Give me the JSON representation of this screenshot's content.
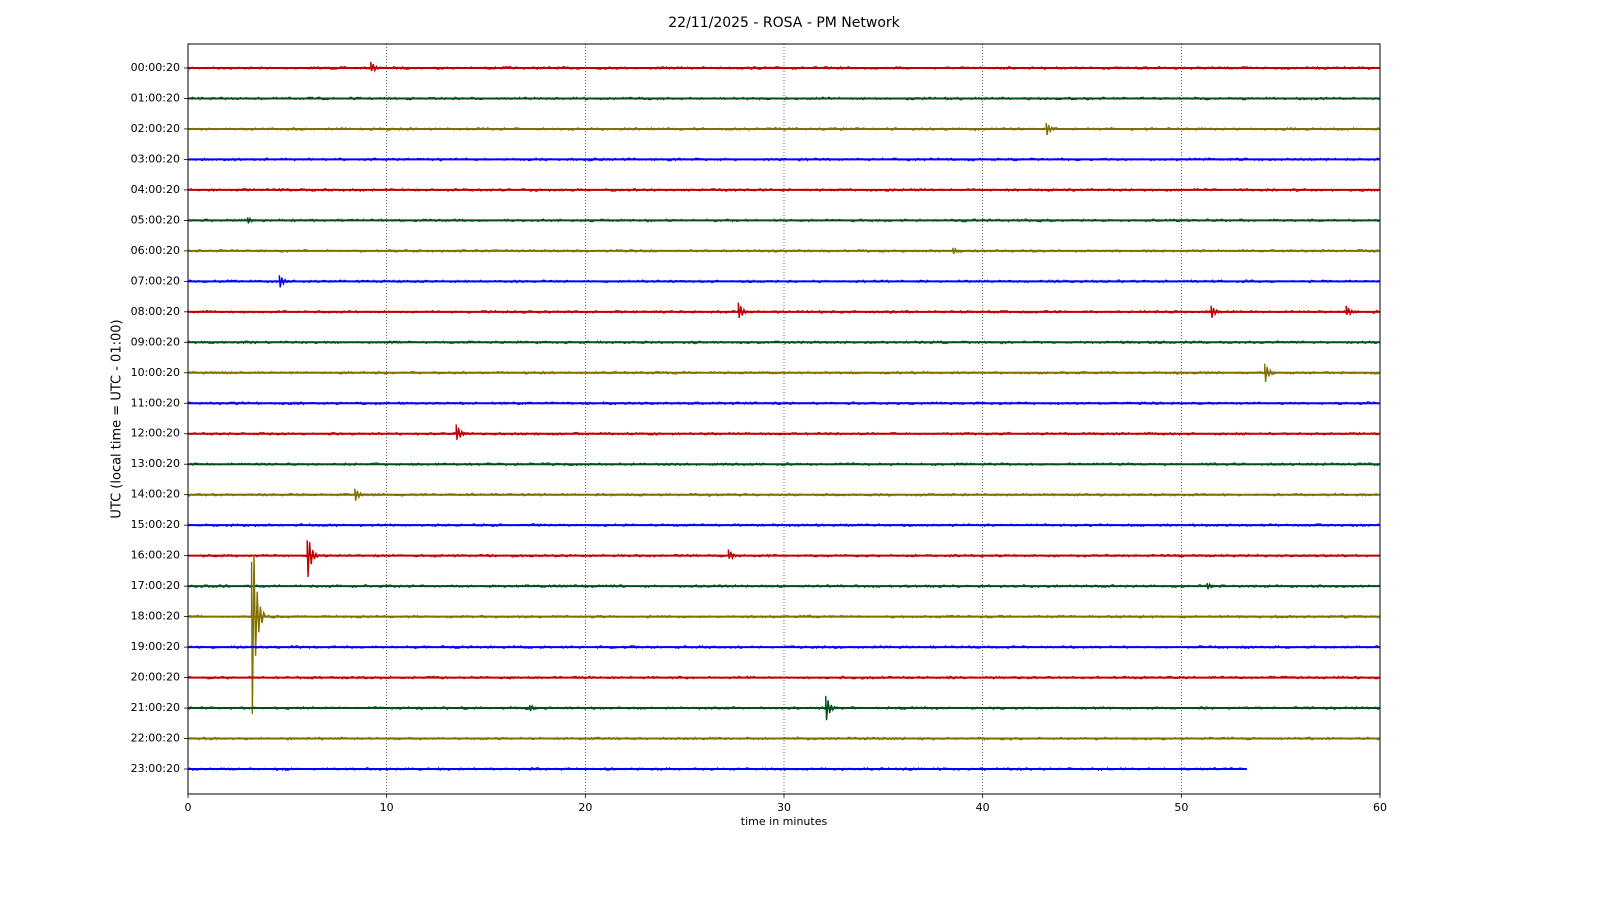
{
  "chart_data": {
    "type": "helicorder",
    "title": "22/11/2025 - ROSA - PM Network",
    "x_label": "time in minutes",
    "y_label": "UTC (local time = UTC - 01:00)",
    "xlim": [
      0,
      60
    ],
    "xticks": [
      0,
      10,
      20,
      30,
      40,
      50,
      60
    ],
    "grid": true,
    "rows": [
      {
        "label": "00:00:20",
        "color": "#c00000",
        "x": [
          0,
          60
        ],
        "events": [
          {
            "x": 9.2,
            "up": 0.2,
            "down": 0.1
          }
        ]
      },
      {
        "label": "01:00:20",
        "color": "#00501e",
        "x": [
          0,
          60
        ],
        "events": []
      },
      {
        "label": "02:00:20",
        "color": "#807000",
        "x": [
          0,
          60
        ],
        "events": [
          {
            "x": 43.2,
            "up": 0.2,
            "down": 0.2
          }
        ]
      },
      {
        "label": "03:00:20",
        "color": "#0000ff",
        "x": [
          0,
          60
        ],
        "events": []
      },
      {
        "label": "04:00:20",
        "color": "#c00000",
        "x": [
          0,
          60
        ],
        "events": []
      },
      {
        "label": "05:00:20",
        "color": "#00501e",
        "x": [
          0,
          60
        ],
        "events": [
          {
            "x": 3.0,
            "up": 0.1,
            "down": 0.1
          }
        ]
      },
      {
        "label": "06:00:20",
        "color": "#807000",
        "x": [
          0,
          60
        ],
        "events": [
          {
            "x": 38.5,
            "up": 0.1,
            "down": 0.1
          }
        ]
      },
      {
        "label": "07:00:20",
        "color": "#0000ff",
        "x": [
          0,
          60
        ],
        "events": [
          {
            "x": 4.6,
            "up": 0.2,
            "down": 0.2
          }
        ]
      },
      {
        "label": "08:00:20",
        "color": "#c00000",
        "x": [
          0,
          60
        ],
        "events": [
          {
            "x": 27.7,
            "up": 0.3,
            "down": 0.2
          },
          {
            "x": 51.5,
            "up": 0.2,
            "down": 0.2
          },
          {
            "x": 58.3,
            "up": 0.2,
            "down": 0.1
          }
        ]
      },
      {
        "label": "09:00:20",
        "color": "#00501e",
        "x": [
          0,
          60
        ],
        "events": []
      },
      {
        "label": "10:00:20",
        "color": "#807000",
        "x": [
          0,
          60
        ],
        "events": [
          {
            "x": 54.2,
            "up": 0.3,
            "down": 0.3
          }
        ]
      },
      {
        "label": "11:00:20",
        "color": "#0000ff",
        "x": [
          0,
          60
        ],
        "events": []
      },
      {
        "label": "12:00:20",
        "color": "#c00000",
        "x": [
          0,
          60
        ],
        "events": [
          {
            "x": 13.5,
            "up": 0.3,
            "down": 0.2
          }
        ]
      },
      {
        "label": "13:00:20",
        "color": "#00501e",
        "x": [
          0,
          60
        ],
        "events": []
      },
      {
        "label": "14:00:20",
        "color": "#807000",
        "x": [
          0,
          60
        ],
        "events": [
          {
            "x": 8.4,
            "up": 0.2,
            "down": 0.2
          }
        ]
      },
      {
        "label": "15:00:20",
        "color": "#0000ff",
        "x": [
          0,
          60
        ],
        "events": []
      },
      {
        "label": "16:00:20",
        "color": "#c00000",
        "x": [
          0,
          60
        ],
        "events": [
          {
            "x": 6.0,
            "up": 0.5,
            "down": 0.7
          },
          {
            "x": 27.2,
            "up": 0.2,
            "down": 0.1
          }
        ]
      },
      {
        "label": "17:00:20",
        "color": "#00501e",
        "x": [
          0,
          60
        ],
        "events": [
          {
            "x": 51.3,
            "up": 0.1,
            "down": 0.1
          }
        ]
      },
      {
        "label": "18:00:20",
        "color": "#807000",
        "x": [
          0,
          60
        ],
        "events": [
          {
            "x": 3.2,
            "up": 1.8,
            "down": 3.2
          }
        ]
      },
      {
        "label": "19:00:20",
        "color": "#0000ff",
        "x": [
          0,
          60
        ],
        "events": []
      },
      {
        "label": "20:00:20",
        "color": "#c00000",
        "x": [
          0,
          60
        ],
        "events": []
      },
      {
        "label": "21:00:20",
        "color": "#00501e",
        "x": [
          0,
          60
        ],
        "events": [
          {
            "x": 17.2,
            "up": 0.1,
            "down": 0.1
          },
          {
            "x": 32.1,
            "up": 0.4,
            "down": 0.4
          }
        ]
      },
      {
        "label": "22:00:20",
        "color": "#807000",
        "x": [
          0,
          60
        ],
        "events": []
      },
      {
        "label": "23:00:20",
        "color": "#0000ff",
        "x": [
          0,
          53.3
        ],
        "events": []
      }
    ]
  }
}
